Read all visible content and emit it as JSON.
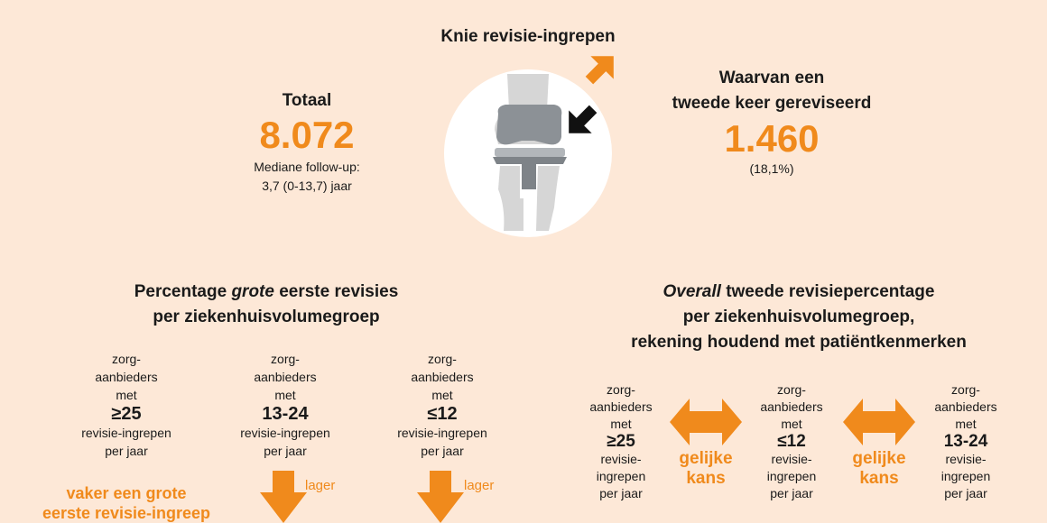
{
  "top": {
    "title": "Knie revisie-ingrepen"
  },
  "left_stat": {
    "label": "Totaal",
    "value": "8.072",
    "sub1": "Mediane follow-up:",
    "sub2": "3,7 (0-13,7) jaar"
  },
  "right_stat": {
    "label1": "Waarvan een",
    "label2": "tweede keer gereviseerd",
    "value": "1.460",
    "sub": "(18,1%)"
  },
  "left_section": {
    "title1_a": "Percentage ",
    "title1_b": "grote",
    "title1_c": " eerste revisies",
    "title2": "per ziekenhuisvolumegroep",
    "groups": [
      {
        "l1": "zorg-",
        "l2": "aanbieders",
        "l3": "met",
        "num": "≥25",
        "l4": "revisie-ingrepen",
        "l5": "per jaar"
      },
      {
        "l1": "zorg-",
        "l2": "aanbieders",
        "l3": "met",
        "num": "13-24",
        "l4": "revisie-ingrepen",
        "l5": "per jaar"
      },
      {
        "l1": "zorg-",
        "l2": "aanbieders",
        "l3": "met",
        "num": "≤12",
        "l4": "revisie-ingrepen",
        "l5": "per jaar"
      }
    ],
    "note1": "vaker een grote",
    "note2": "eerste revisie-ingreep",
    "lower1": "lager",
    "lower2": "lager"
  },
  "right_section": {
    "title1_a": "Overall",
    "title1_b": " tweede revisiepercentage",
    "title2": "per ziekenhuisvolumegroep,",
    "title3": "rekening houdend met patiëntkenmerken",
    "groups": [
      {
        "l1": "zorg-",
        "l2": "aanbieders",
        "l3": "met",
        "num": "≥25",
        "l4": "revisie-",
        "l5": "ingrepen",
        "l6": "per jaar"
      },
      {
        "l1": "zorg-",
        "l2": "aanbieders",
        "l3": "met",
        "num": "≤12",
        "l4": "revisie-",
        "l5": "ingrepen",
        "l6": "per jaar"
      },
      {
        "l1": "zorg-",
        "l2": "aanbieders",
        "l3": "met",
        "num": "13-24",
        "l4": "revisie-",
        "l5": "ingrepen",
        "l6": "per jaar"
      }
    ],
    "eq1_a": "gelijke",
    "eq1_b": "kans",
    "eq2_a": "gelijke",
    "eq2_b": "kans"
  },
  "colors": {
    "accent": "#f08a1c",
    "background": "#fde8d7"
  }
}
